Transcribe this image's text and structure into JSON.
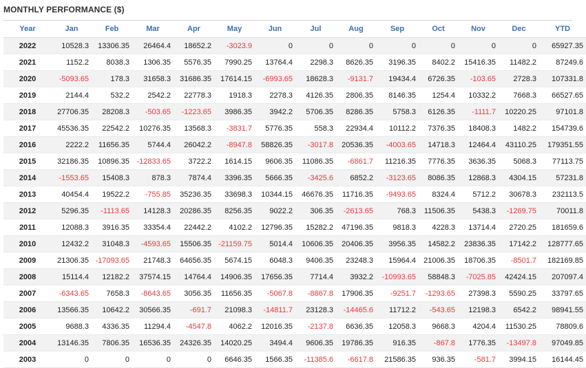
{
  "title": "MONTHLY PERFORMANCE ($)",
  "colors": {
    "header_text": "#3a6fb0",
    "negative": "#e8383d",
    "stripe": "#f2f2f2"
  },
  "columns": [
    "Year",
    "Jan",
    "Feb",
    "Mar",
    "Apr",
    "May",
    "Jun",
    "Jul",
    "Aug",
    "Sep",
    "Oct",
    "Nov",
    "Dec",
    "YTD"
  ],
  "rows": [
    [
      "2022",
      "10528.3",
      "13306.35",
      "26464.4",
      "18652.2",
      "-3023.9",
      "0",
      "0",
      "0",
      "0",
      "0",
      "0",
      "0",
      "65927.35"
    ],
    [
      "2021",
      "1152.2",
      "8038.3",
      "1306.35",
      "5576.35",
      "7990.25",
      "13764.4",
      "2298.3",
      "8626.35",
      "3196.35",
      "8402.2",
      "15416.35",
      "11482.2",
      "87249.6"
    ],
    [
      "2020",
      "-5093.65",
      "178.3",
      "31658.3",
      "31686.35",
      "17614.15",
      "-6993.65",
      "18628.3",
      "-9131.7",
      "19434.4",
      "6726.35",
      "-103.65",
      "2728.3",
      "107331.8"
    ],
    [
      "2019",
      "2144.4",
      "532.2",
      "2542.2",
      "22778.3",
      "1918.3",
      "2278.3",
      "4126.35",
      "2806.35",
      "8146.35",
      "1254.4",
      "10332.2",
      "7668.3",
      "66527.65"
    ],
    [
      "2018",
      "27706.35",
      "28208.3",
      "-503.65",
      "-1223.65",
      "3986.35",
      "3942.2",
      "5706.35",
      "8286.35",
      "5758.3",
      "6126.35",
      "-1111.7",
      "10220.25",
      "97101.8"
    ],
    [
      "2017",
      "45536.35",
      "22542.2",
      "10276.35",
      "13568.3",
      "-3831.7",
      "5776.35",
      "558.3",
      "22934.4",
      "10112.2",
      "7376.35",
      "18408.3",
      "1482.2",
      "154739.6"
    ],
    [
      "2016",
      "2222.2",
      "11656.35",
      "5744.4",
      "26042.2",
      "-8947.8",
      "58826.35",
      "-3017.8",
      "20536.35",
      "-4003.65",
      "14718.3",
      "12464.4",
      "43110.25",
      "179351.55"
    ],
    [
      "2015",
      "32186.35",
      "10896.35",
      "-12833.65",
      "3722.2",
      "1614.15",
      "9606.35",
      "11086.35",
      "-6861.7",
      "11216.35",
      "7776.35",
      "3636.35",
      "5068.3",
      "77113.75"
    ],
    [
      "2014",
      "-1553.65",
      "15408.3",
      "878.3",
      "7874.4",
      "3396.35",
      "5666.35",
      "-3425.6",
      "6852.2",
      "-3123.65",
      "8086.35",
      "12868.3",
      "4304.15",
      "57231.8"
    ],
    [
      "2013",
      "40454.4",
      "19522.2",
      "-755.85",
      "35236.35",
      "33698.3",
      "10344.15",
      "46676.35",
      "11716.35",
      "-9493.65",
      "8324.4",
      "5712.2",
      "30678.3",
      "232113.5"
    ],
    [
      "2012",
      "5296.35",
      "-1113.65",
      "14128.3",
      "20286.35",
      "8256.35",
      "9022.2",
      "306.35",
      "-2613.65",
      "768.3",
      "11506.35",
      "5438.3",
      "-1269.75",
      "70011.8"
    ],
    [
      "2011",
      "12088.3",
      "3916.35",
      "33354.4",
      "22442.2",
      "4102.2",
      "12796.35",
      "15282.2",
      "47196.35",
      "9818.3",
      "4228.3",
      "13714.4",
      "2720.25",
      "181659.6"
    ],
    [
      "2010",
      "12432.2",
      "31048.3",
      "-4593.65",
      "15506.35",
      "-21159.75",
      "5014.4",
      "10606.35",
      "20406.35",
      "3956.35",
      "14582.2",
      "23836.35",
      "17142.2",
      "128777.65"
    ],
    [
      "2009",
      "21306.35",
      "-17093.65",
      "21748.3",
      "64656.35",
      "5674.15",
      "6048.3",
      "9406.35",
      "23248.3",
      "15964.4",
      "21006.35",
      "18706.35",
      "-8501.7",
      "182169.85"
    ],
    [
      "2008",
      "15114.4",
      "12182.2",
      "37574.15",
      "14764.4",
      "14906.35",
      "17656.35",
      "7714.4",
      "3932.2",
      "-10993.65",
      "58848.3",
      "-7025.85",
      "42424.15",
      "207097.4"
    ],
    [
      "2007",
      "-6343.65",
      "7658.3",
      "-8643.65",
      "3056.35",
      "11656.35",
      "-5067.8",
      "-8867.8",
      "17906.35",
      "-9251.7",
      "-1293.65",
      "27398.3",
      "5590.25",
      "33797.65"
    ],
    [
      "2006",
      "13566.35",
      "10642.2",
      "30566.35",
      "-691.7",
      "21098.3",
      "-14811.7",
      "23128.3",
      "-14465.6",
      "11712.2",
      "-543.65",
      "12198.3",
      "6542.2",
      "98941.55"
    ],
    [
      "2005",
      "9688.3",
      "4336.35",
      "11294.4",
      "-4547.8",
      "4062.2",
      "12016.35",
      "-2137.8",
      "6636.35",
      "12058.3",
      "9668.3",
      "4204.4",
      "11530.25",
      "78809.6"
    ],
    [
      "2004",
      "13146.35",
      "7806.35",
      "16536.35",
      "24326.35",
      "14020.25",
      "3494.4",
      "9606.35",
      "19786.35",
      "916.35",
      "-867.8",
      "1776.35",
      "-13497.8",
      "97049.85"
    ],
    [
      "2003",
      "0",
      "0",
      "0",
      "0",
      "6646.35",
      "1566.35",
      "-11385.6",
      "-6617.8",
      "21586.35",
      "936.35",
      "-581.7",
      "3994.15",
      "16144.45"
    ]
  ]
}
